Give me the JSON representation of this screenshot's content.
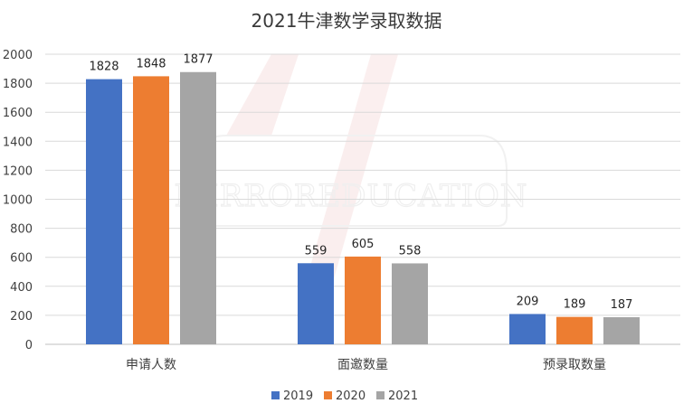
{
  "chart_data": {
    "type": "bar",
    "title": "2021牛津数学录取数据",
    "categories": [
      "申请人数",
      "面邀数量",
      "预录取数量"
    ],
    "series": [
      {
        "name": "2019",
        "color": "#4472C4",
        "values": [
          1828,
          559,
          209
        ]
      },
      {
        "name": "2020",
        "color": "#ED7D31",
        "values": [
          1848,
          605,
          189
        ]
      },
      {
        "name": "2021",
        "color": "#A5A5A5",
        "values": [
          1877,
          558,
          187
        ]
      }
    ],
    "ylim": [
      0,
      2000
    ],
    "yticks": [
      0,
      200,
      400,
      600,
      800,
      1000,
      1200,
      1400,
      1600,
      1800,
      2000
    ],
    "grid": true,
    "legend_position": "bottom",
    "xlabel": "",
    "ylabel": ""
  },
  "watermark": {
    "text": "MIRROREDUCATION"
  }
}
